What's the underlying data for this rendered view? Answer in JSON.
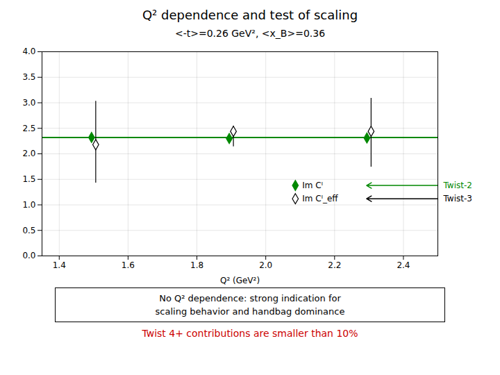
{
  "chart_data": {
    "type": "scatter",
    "title": "Q² dependence and test of scaling",
    "subtitle": "<-t>=0.26 GeV², <x_B>=0.36",
    "xlabel": "Q² (GeV²)",
    "xlim": [
      1.35,
      2.5
    ],
    "ylim": [
      0,
      4.0
    ],
    "xticks": [
      1.4,
      1.6,
      1.8,
      {
        "value": 2.0,
        "label": "2.0"
      },
      2.2,
      2.4
    ],
    "yticks": [
      {
        "value": 0,
        "label": "0.0"
      },
      0.5,
      {
        "value": 1.0,
        "label": "1.0"
      },
      1.5,
      {
        "value": 2.0,
        "label": "2.0"
      },
      2.5,
      {
        "value": 3.0,
        "label": "3.0"
      },
      3.5,
      {
        "value": 4.0,
        "label": "4.0"
      }
    ],
    "grid": true,
    "legend": "lower right",
    "x": [
      1.5,
      1.9,
      2.3
    ],
    "series": [
      {
        "name": "Im Cᴵ",
        "color": "#008800",
        "marker": "diamond",
        "values": [
          2.32,
          2.3,
          2.31
        ],
        "yerr_low": [
          0.07,
          0.06,
          0.06
        ],
        "yerr_high": [
          0.07,
          0.06,
          0.06
        ]
      },
      {
        "name": "Im Cᴵ_eff",
        "color": "#000000",
        "marker": "diamond_open",
        "values": [
          2.18,
          2.44,
          2.44
        ],
        "yerr_low": [
          0.75,
          0.3,
          0.7
        ],
        "yerr_high": [
          0.85,
          0.1,
          0.65
        ]
      }
    ],
    "reference_lines": [
      {
        "y": 2.32,
        "color": "#008800"
      }
    ],
    "annotations": [
      {
        "text": "Twist-2",
        "color": "#008800",
        "series": "Im Cᴵ"
      },
      {
        "text": "Twist-3",
        "color": "#000000",
        "series": "Im Cᴵ_eff"
      }
    ],
    "notes": [
      "No Q² dependence: strong indication for",
      "scaling behavior and handbag dominance"
    ],
    "footnote": {
      "text": "Twist 4+ contributions are smaller than 10%",
      "color": "#cc0000"
    }
  }
}
